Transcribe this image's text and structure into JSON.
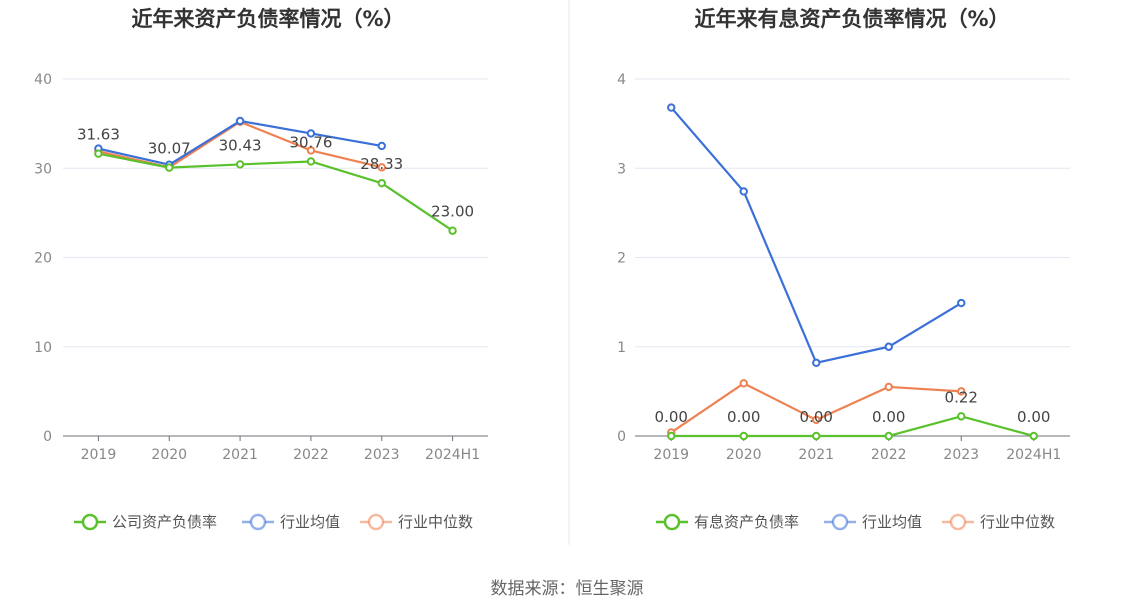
{
  "source_text": "数据来源：恒生聚源",
  "chart_data": [
    {
      "type": "line",
      "title": "近年来资产负债率情况（%）",
      "categories": [
        "2019",
        "2020",
        "2021",
        "2022",
        "2023",
        "2024H1"
      ],
      "y_ticks": [
        "0",
        "10",
        "20",
        "30",
        "40"
      ],
      "ylim": [
        0,
        40
      ],
      "grid": true,
      "legend_position": "bottom",
      "series": [
        {
          "name": "公司资产负债率",
          "color": "#5ac12c",
          "values": [
            31.63,
            30.07,
            30.43,
            30.76,
            28.33,
            23.0
          ],
          "labels": [
            "31.63",
            "30.07",
            "30.43",
            "30.76",
            "28.33",
            "23.00"
          ]
        },
        {
          "name": "行业均值",
          "color": "#3a70d8",
          "values": [
            32.2,
            30.4,
            35.3,
            33.9,
            32.5,
            null
          ]
        },
        {
          "name": "行业中位数",
          "color": "#ef8152",
          "values": [
            31.9,
            30.1,
            35.2,
            32.0,
            30.1,
            null
          ]
        }
      ]
    },
    {
      "type": "line",
      "title": "近年来有息资产负债率情况（%）",
      "categories": [
        "2019",
        "2020",
        "2021",
        "2022",
        "2023",
        "2024H1"
      ],
      "y_ticks": [
        "0",
        "1",
        "2",
        "3",
        "4"
      ],
      "ylim": [
        0,
        4
      ],
      "grid": true,
      "legend_position": "bottom",
      "series": [
        {
          "name": "有息资产负债率",
          "color": "#5ac12c",
          "values": [
            0.0,
            0.0,
            0.0,
            0.0,
            0.22,
            0.0
          ],
          "labels": [
            "0.00",
            "0.00",
            "0.00",
            "0.00",
            "0.22",
            "0.00"
          ]
        },
        {
          "name": "行业均值",
          "color": "#3a70d8",
          "values": [
            3.68,
            2.74,
            0.82,
            1.0,
            1.49,
            null
          ]
        },
        {
          "name": "行业中位数",
          "color": "#ef8152",
          "values": [
            0.04,
            0.59,
            0.18,
            0.55,
            0.5,
            null
          ]
        }
      ]
    }
  ]
}
